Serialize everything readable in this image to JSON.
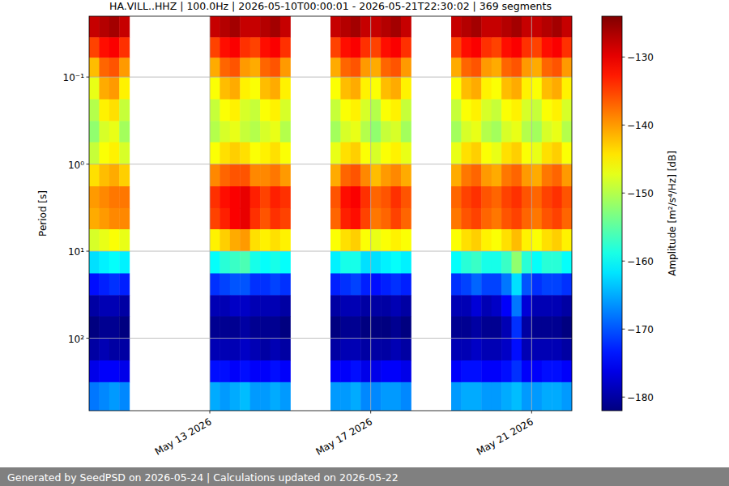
{
  "chart_data": {
    "type": "heatmap",
    "title": "HA.VILL..HHZ | 100.0Hz | 2026-05-10T00:00:01 - 2026-05-21T22:30:02 | 369 segments",
    "footer": "Generated by SeedPSD on 2026-05-24 | Calculations updated on 2026-05-22",
    "y_label": "Period [s]",
    "log": "y",
    "grid": true,
    "xlim": [
      "2026-05-10T00:00",
      "2026-05-22T00:00"
    ],
    "xticks": [
      {
        "value": "2026-05-13T00:00",
        "label": "May 13 2026"
      },
      {
        "value": "2026-05-17T00:00",
        "label": "May 17 2026"
      },
      {
        "value": "2026-05-21T00:00",
        "label": "May 21 2026"
      }
    ],
    "ylim": [
      0.02,
      680
    ],
    "yticks": [
      {
        "value": 0.1,
        "label": "10⁻¹"
      },
      {
        "value": 1,
        "label": "10⁰"
      },
      {
        "value": 10,
        "label": "10¹"
      },
      {
        "value": 100,
        "label": "10²"
      }
    ],
    "y_edges": [
      0.02,
      0.035,
      0.06,
      0.1,
      0.18,
      0.32,
      0.56,
      1,
      1.8,
      3.2,
      5.6,
      10,
      18,
      32,
      56,
      100,
      180,
      320,
      680
    ],
    "x": [
      "2026-05-10T00:00",
      "2026-05-10T06:00",
      "2026-05-10T12:00",
      "2026-05-10T18:00",
      "2026-05-13T00:00",
      "2026-05-13T06:00",
      "2026-05-13T12:00",
      "2026-05-13T18:00",
      "2026-05-14T00:00",
      "2026-05-14T06:00",
      "2026-05-14T12:00",
      "2026-05-14T18:00",
      "2026-05-16T00:00",
      "2026-05-16T06:00",
      "2026-05-16T12:00",
      "2026-05-16T18:00",
      "2026-05-17T00:00",
      "2026-05-17T06:00",
      "2026-05-17T12:00",
      "2026-05-17T18:00",
      "2026-05-19T00:00",
      "2026-05-19T06:00",
      "2026-05-19T12:00",
      "2026-05-19T18:00",
      "2026-05-20T00:00",
      "2026-05-20T06:00",
      "2026-05-20T12:00",
      "2026-05-20T18:00",
      "2026-05-21T00:00",
      "2026-05-21T06:00",
      "2026-05-21T12:00",
      "2026-05-21T18:00"
    ],
    "x_end": [
      "2026-05-10T06:00",
      "2026-05-10T12:00",
      "2026-05-10T18:00",
      "2026-05-11T00:00",
      "2026-05-13T06:00",
      "2026-05-13T12:00",
      "2026-05-13T18:00",
      "2026-05-14T00:00",
      "2026-05-14T06:00",
      "2026-05-14T12:00",
      "2026-05-14T18:00",
      "2026-05-15T00:00",
      "2026-05-16T06:00",
      "2026-05-16T12:00",
      "2026-05-16T18:00",
      "2026-05-17T00:00",
      "2026-05-17T06:00",
      "2026-05-17T12:00",
      "2026-05-17T18:00",
      "2026-05-18T00:00",
      "2026-05-19T06:00",
      "2026-05-19T12:00",
      "2026-05-19T18:00",
      "2026-05-20T00:00",
      "2026-05-20T06:00",
      "2026-05-20T12:00",
      "2026-05-20T18:00",
      "2026-05-21T00:00",
      "2026-05-21T06:00",
      "2026-05-21T12:00",
      "2026-05-21T18:00",
      "2026-05-22T00:00"
    ],
    "cells": [
      [
        -128,
        -135,
        -142,
        -147,
        -150,
        -152,
        -149,
        -144,
        -140,
        -141,
        -148,
        -162,
        -174,
        -180,
        -182,
        -180,
        -176,
        -168
      ],
      [
        -127,
        -132,
        -137,
        -141,
        -145,
        -148,
        -146,
        -142,
        -139,
        -140,
        -147,
        -161,
        -173,
        -179,
        -181,
        -179,
        -175,
        -167
      ],
      [
        -126,
        -131,
        -136,
        -140,
        -144,
        -147,
        -145,
        -141,
        -138,
        -139,
        -146,
        -160,
        -172,
        -179,
        -181,
        -180,
        -175,
        -166
      ],
      [
        -128,
        -134,
        -140,
        -145,
        -149,
        -151,
        -148,
        -143,
        -138,
        -139,
        -147,
        -161,
        -173,
        -180,
        -182,
        -180,
        -176,
        -167
      ],
      [
        -128,
        -135,
        -141,
        -146,
        -149,
        -150,
        -146,
        -139,
        -134,
        -135,
        -145,
        -160,
        -172,
        -179,
        -181,
        -179,
        -174,
        -165
      ],
      [
        -127,
        -132,
        -137,
        -142,
        -146,
        -148,
        -144,
        -137,
        -132,
        -133,
        -143,
        -158,
        -171,
        -179,
        -181,
        -179,
        -174,
        -166
      ],
      [
        -126,
        -131,
        -136,
        -141,
        -145,
        -147,
        -143,
        -136,
        -131,
        -131,
        -141,
        -157,
        -170,
        -178,
        -181,
        -179,
        -175,
        -165
      ],
      [
        -128,
        -134,
        -140,
        -145,
        -148,
        -149,
        -144,
        -136,
        -130,
        -130,
        -140,
        -156,
        -170,
        -178,
        -180,
        -178,
        -174,
        -164
      ],
      [
        -128,
        -135,
        -141,
        -146,
        -149,
        -150,
        -146,
        -139,
        -133,
        -134,
        -144,
        -159,
        -172,
        -179,
        -181,
        -179,
        -175,
        -166
      ],
      [
        -127,
        -132,
        -137,
        -142,
        -146,
        -148,
        -145,
        -139,
        -135,
        -136,
        -145,
        -160,
        -172,
        -179,
        -181,
        -180,
        -175,
        -166
      ],
      [
        -126,
        -131,
        -136,
        -141,
        -145,
        -147,
        -144,
        -138,
        -133,
        -134,
        -144,
        -159,
        -171,
        -179,
        -181,
        -179,
        -174,
        -165
      ],
      [
        -128,
        -134,
        -140,
        -145,
        -148,
        -150,
        -146,
        -140,
        -134,
        -135,
        -145,
        -160,
        -172,
        -180,
        -182,
        -180,
        -175,
        -166
      ],
      [
        -128,
        -135,
        -141,
        -146,
        -149,
        -151,
        -147,
        -141,
        -136,
        -137,
        -146,
        -161,
        -173,
        -180,
        -182,
        -180,
        -175,
        -166
      ],
      [
        -127,
        -132,
        -137,
        -142,
        -146,
        -148,
        -144,
        -137,
        -132,
        -133,
        -144,
        -159,
        -172,
        -179,
        -181,
        -179,
        -175,
        -166
      ],
      [
        -126,
        -131,
        -136,
        -141,
        -145,
        -147,
        -143,
        -136,
        -131,
        -132,
        -143,
        -159,
        -171,
        -179,
        -181,
        -179,
        -174,
        -165
      ],
      [
        -128,
        -134,
        -140,
        -145,
        -148,
        -150,
        -146,
        -139,
        -134,
        -135,
        -146,
        -162,
        -173,
        -180,
        -182,
        -180,
        -176,
        -167
      ],
      [
        -128,
        -135,
        -141,
        -146,
        -150,
        -152,
        -148,
        -142,
        -137,
        -138,
        -147,
        -162,
        -174,
        -180,
        -182,
        -180,
        -176,
        -167
      ],
      [
        -127,
        -132,
        -137,
        -142,
        -146,
        -149,
        -146,
        -140,
        -136,
        -137,
        -146,
        -161,
        -173,
        -180,
        -182,
        -180,
        -175,
        -166
      ],
      [
        -126,
        -131,
        -136,
        -141,
        -145,
        -148,
        -145,
        -139,
        -134,
        -135,
        -145,
        -160,
        -172,
        -179,
        -181,
        -179,
        -175,
        -166
      ],
      [
        -128,
        -134,
        -140,
        -145,
        -149,
        -151,
        -147,
        -141,
        -136,
        -137,
        -146,
        -161,
        -173,
        -180,
        -182,
        -180,
        -176,
        -167
      ],
      [
        -128,
        -135,
        -141,
        -146,
        -149,
        -151,
        -147,
        -141,
        -137,
        -138,
        -146,
        -160,
        -172,
        -179,
        -181,
        -179,
        -175,
        -166
      ],
      [
        -127,
        -132,
        -137,
        -142,
        -146,
        -148,
        -144,
        -138,
        -135,
        -136,
        -144,
        -158,
        -171,
        -179,
        -181,
        -179,
        -174,
        -165
      ],
      [
        -126,
        -131,
        -136,
        -141,
        -145,
        -147,
        -143,
        -137,
        -134,
        -135,
        -143,
        -157,
        -169,
        -177,
        -180,
        -178,
        -174,
        -165
      ],
      [
        -128,
        -134,
        -140,
        -145,
        -148,
        -150,
        -146,
        -140,
        -136,
        -137,
        -145,
        -159,
        -171,
        -179,
        -181,
        -179,
        -175,
        -166
      ],
      [
        -128,
        -135,
        -141,
        -146,
        -149,
        -151,
        -147,
        -141,
        -137,
        -138,
        -146,
        -159,
        -171,
        -178,
        -181,
        -179,
        -175,
        -166
      ],
      [
        -127,
        -132,
        -137,
        -142,
        -146,
        -148,
        -144,
        -138,
        -135,
        -136,
        -144,
        -157,
        -168,
        -175,
        -179,
        -178,
        -174,
        -165
      ],
      [
        -126,
        -131,
        -136,
        -141,
        -145,
        -147,
        -143,
        -137,
        -134,
        -135,
        -142,
        -152,
        -162,
        -168,
        -172,
        -174,
        -172,
        -164
      ],
      [
        -128,
        -134,
        -140,
        -145,
        -148,
        -150,
        -146,
        -140,
        -136,
        -137,
        -145,
        -158,
        -170,
        -177,
        -180,
        -179,
        -175,
        -166
      ],
      [
        -128,
        -135,
        -141,
        -146,
        -149,
        -151,
        -147,
        -141,
        -137,
        -138,
        -146,
        -160,
        -172,
        -179,
        -181,
        -179,
        -175,
        -166
      ],
      [
        -127,
        -132,
        -137,
        -142,
        -146,
        -148,
        -144,
        -138,
        -135,
        -136,
        -144,
        -158,
        -171,
        -179,
        -181,
        -179,
        -174,
        -165
      ],
      [
        -126,
        -131,
        -136,
        -141,
        -145,
        -147,
        -143,
        -137,
        -134,
        -135,
        -143,
        -158,
        -171,
        -179,
        -181,
        -179,
        -174,
        -165
      ],
      [
        -128,
        -134,
        -140,
        -145,
        -148,
        -150,
        -146,
        -140,
        -136,
        -137,
        -145,
        -160,
        -172,
        -180,
        -182,
        -180,
        -175,
        -166
      ]
    ],
    "colorbar": {
      "label": "Amplitude [m²/s⁴/Hz] [dB]",
      "range": [
        -182,
        -124
      ],
      "ticks": [
        -130,
        -140,
        -150,
        -160,
        -170,
        -180
      ]
    }
  }
}
